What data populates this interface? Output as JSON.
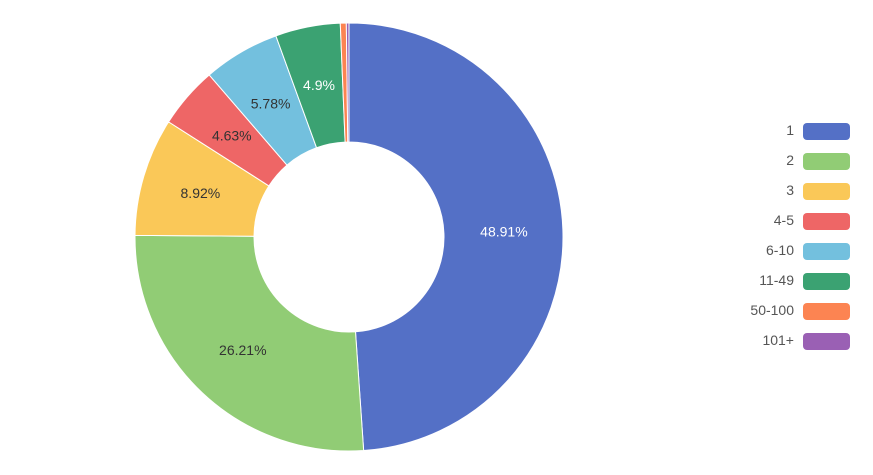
{
  "chart_data": {
    "type": "pie",
    "variant": "donut",
    "categories": [
      "1",
      "2",
      "3",
      "4-5",
      "6-10",
      "11-49",
      "50-100",
      "101+"
    ],
    "values": [
      48.91,
      26.21,
      8.92,
      4.63,
      5.78,
      4.9,
      0.45,
      0.2
    ],
    "labels": [
      "48.91%",
      "26.21%",
      "8.92%",
      "4.63%",
      "5.78%",
      "4.9%",
      "",
      ""
    ],
    "colors": [
      "#5470c6",
      "#91cc75",
      "#fac858",
      "#ee6666",
      "#73c0de",
      "#3ba272",
      "#fc8452",
      "#9a60b4"
    ],
    "label_colors": [
      "#ffffff",
      "#333333",
      "#333333",
      "#333333",
      "#333333",
      "#ffffff",
      "#333333",
      "#333333"
    ],
    "start": "top",
    "direction": "clockwise",
    "legend_position": "right"
  }
}
